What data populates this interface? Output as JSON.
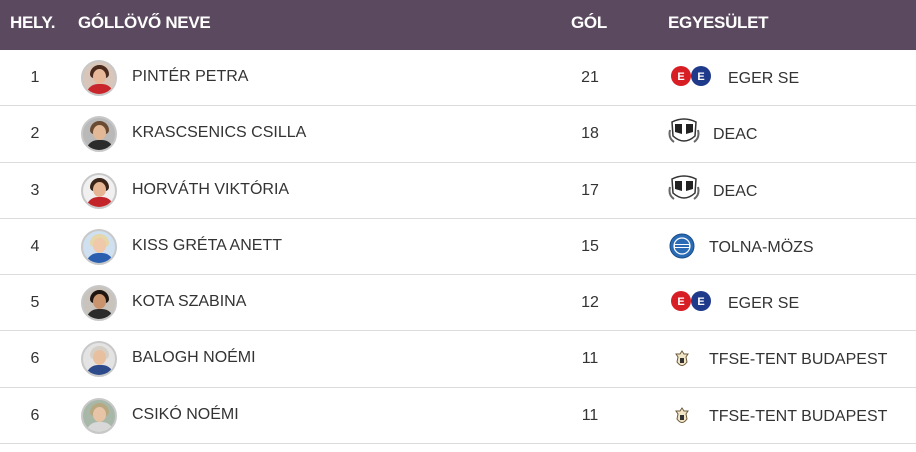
{
  "header": {
    "rank": "HELY.",
    "name": "GÓLLÖVŐ NEVE",
    "goals": "GÓL",
    "club": "EGYESÜLET"
  },
  "colors": {
    "header_bg": "#5b4a5f",
    "eger_red": "#d81e25",
    "eger_blue": "#1f3a8a",
    "tolna_blue": "#2a6bb5"
  },
  "rows": [
    {
      "rank": "1",
      "name": "PINTÉR PETRA",
      "goals": "21",
      "club": "EGER SE",
      "club_logo": "eger-se-logo"
    },
    {
      "rank": "2",
      "name": "KRASCSENICS CSILLA",
      "goals": "18",
      "club": "DEAC",
      "club_logo": "deac-logo"
    },
    {
      "rank": "3",
      "name": "HORVÁTH VIKTÓRIA",
      "goals": "17",
      "club": "DEAC",
      "club_logo": "deac-logo"
    },
    {
      "rank": "4",
      "name": "KISS GRÉTA ANETT",
      "goals": "15",
      "club": "TOLNA-MÖZS",
      "club_logo": "tolna-mozs-logo"
    },
    {
      "rank": "5",
      "name": "KOTA SZABINA",
      "goals": "12",
      "club": "EGER SE",
      "club_logo": "eger-se-logo"
    },
    {
      "rank": "6",
      "name": "BALOGH NOÉMI",
      "goals": "11",
      "club": "TFSE-TENT BUDAPEST",
      "club_logo": "tfse-logo"
    },
    {
      "rank": "6",
      "name": "CSIKÓ NOÉMI",
      "goals": "11",
      "club": "TFSE-TENT BUDAPEST",
      "club_logo": "tfse-logo"
    }
  ]
}
